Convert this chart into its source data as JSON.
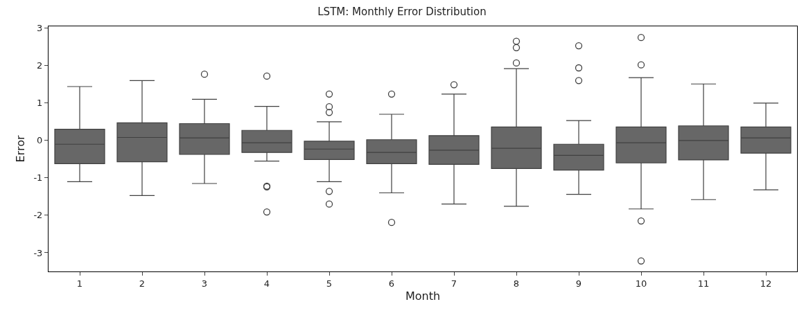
{
  "chart_data": {
    "type": "box",
    "title": "LSTM: Monthly Error Distribution",
    "xlabel": "Month",
    "ylabel": "Error",
    "categories": [
      "1",
      "2",
      "3",
      "4",
      "5",
      "6",
      "7",
      "8",
      "9",
      "10",
      "11",
      "12"
    ],
    "color": "#676767",
    "ylim": [
      -3.5,
      3.05
    ],
    "yticks": [
      -3,
      -2,
      -1,
      0,
      1,
      2,
      3
    ],
    "marker": "circle",
    "boxes": [
      {
        "low": -1.1,
        "q1": -0.62,
        "median": -0.1,
        "q3": 0.3,
        "high": 1.44
      },
      {
        "low": -1.47,
        "q1": -0.57,
        "median": 0.08,
        "q3": 0.47,
        "high": 1.6
      },
      {
        "low": -1.15,
        "q1": -0.37,
        "median": 0.07,
        "q3": 0.45,
        "high": 1.1,
        "outliers": [
          1.77
        ]
      },
      {
        "low": -0.55,
        "q1": -0.32,
        "median": -0.06,
        "q3": 0.27,
        "high": 0.91,
        "outliers": [
          1.72,
          -1.22,
          -1.24,
          -1.91
        ]
      },
      {
        "low": -1.1,
        "q1": -0.51,
        "median": -0.23,
        "q3": -0.02,
        "high": 0.5,
        "outliers": [
          1.24,
          0.9,
          0.75,
          -1.36,
          -1.7
        ]
      },
      {
        "low": -1.4,
        "q1": -0.62,
        "median": -0.32,
        "q3": 0.02,
        "high": 0.7,
        "outliers": [
          1.24,
          -2.19
        ]
      },
      {
        "low": -1.7,
        "q1": -0.64,
        "median": -0.26,
        "q3": 0.13,
        "high": 1.24,
        "outliers": [
          1.49
        ]
      },
      {
        "low": -1.76,
        "q1": -0.75,
        "median": -0.21,
        "q3": 0.36,
        "high": 1.92,
        "outliers": [
          2.07,
          2.48,
          2.65
        ]
      },
      {
        "low": -1.44,
        "q1": -0.79,
        "median": -0.4,
        "q3": -0.1,
        "high": 0.53,
        "outliers": [
          2.53,
          1.94,
          1.6
        ]
      },
      {
        "low": -1.83,
        "q1": -0.6,
        "median": -0.06,
        "q3": 0.36,
        "high": 1.68,
        "outliers": [
          2.75,
          2.02,
          -2.15,
          -3.22
        ]
      },
      {
        "low": -1.58,
        "q1": -0.52,
        "median": 0.0,
        "q3": 0.39,
        "high": 1.51
      },
      {
        "low": -1.32,
        "q1": -0.34,
        "median": 0.07,
        "q3": 0.36,
        "high": 1.0
      }
    ]
  }
}
